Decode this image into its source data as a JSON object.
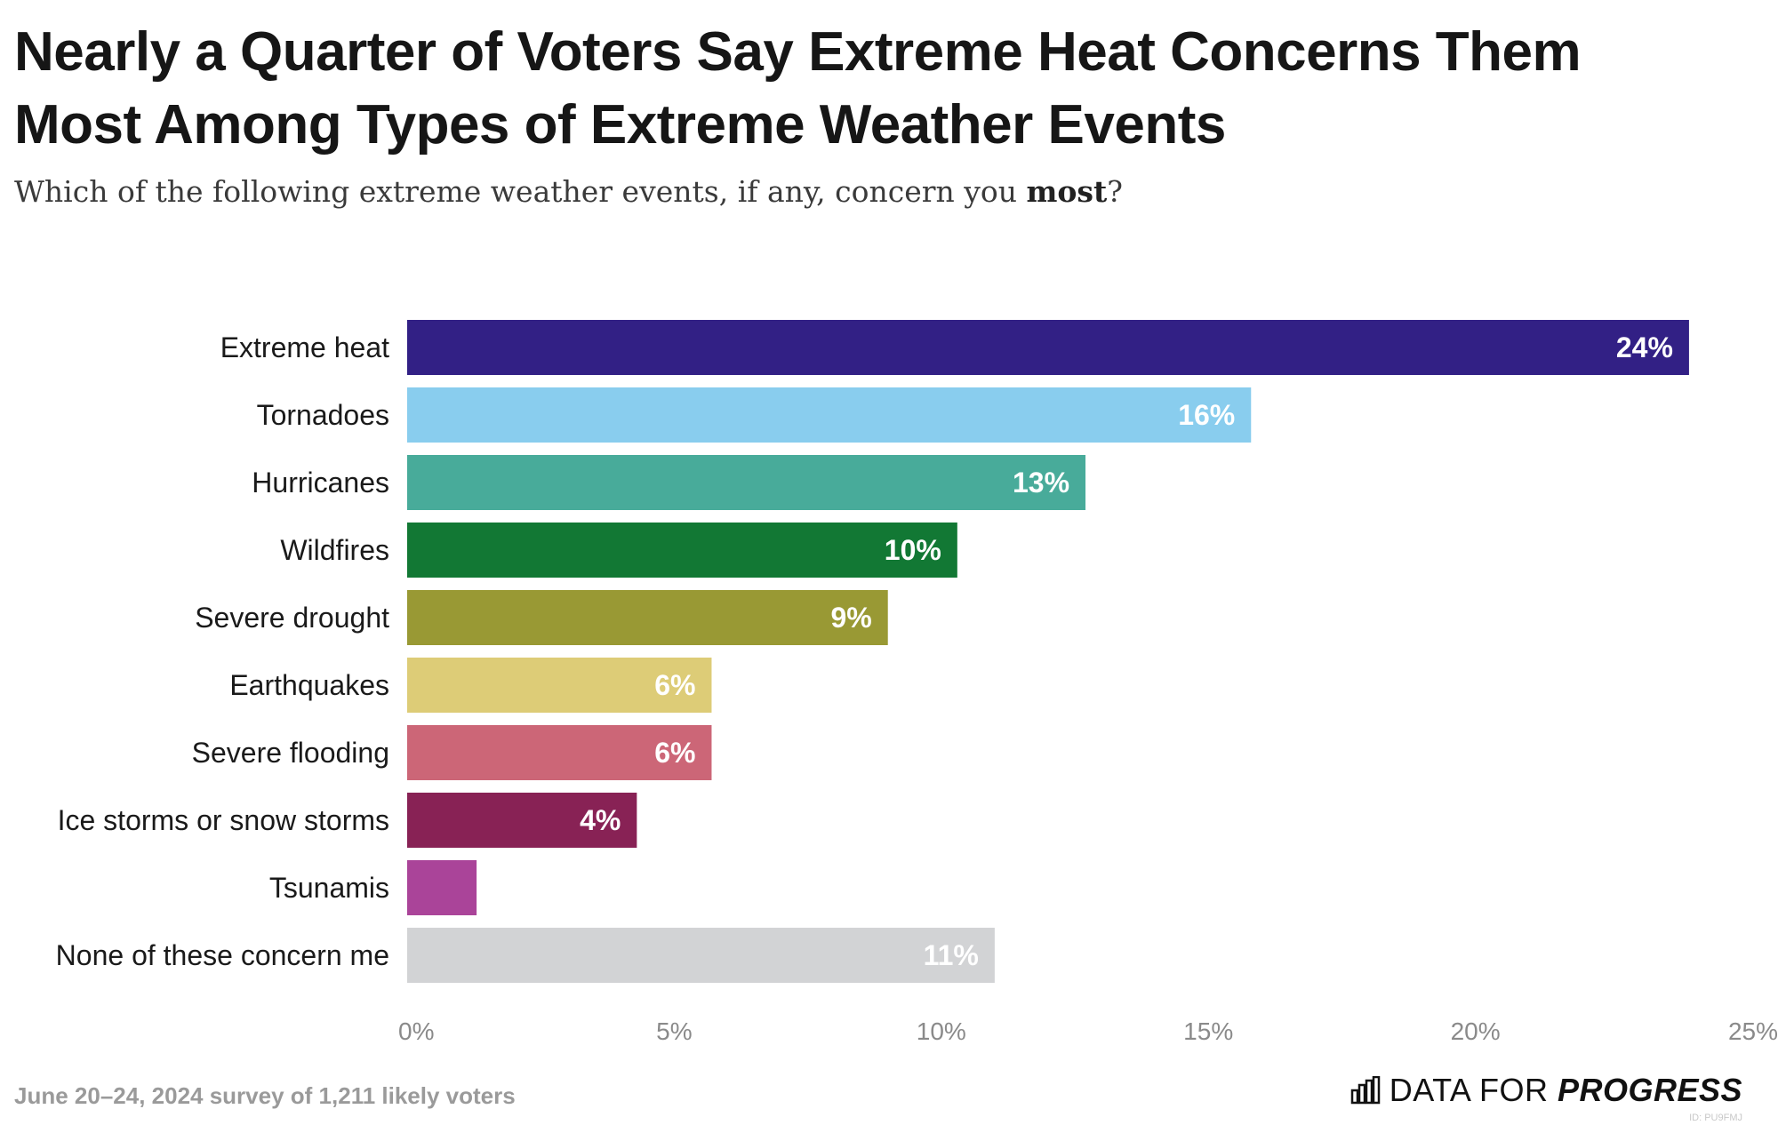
{
  "title_line1": "Nearly a Quarter of Voters Say Extreme Heat Concerns Them",
  "title_line2": "Most Among Types of Extreme Weather Events",
  "subtitle_pre": "Which of the following extreme weather events, if any, concern you ",
  "subtitle_bold": "most",
  "subtitle_post": "?",
  "footer": {
    "note": "June 20–24, 2024 survey of 1,211 likely voters",
    "logo_light": "DATA FOR ",
    "logo_bold": "PROGRESS",
    "id_tag": "ID: PU9FMJ"
  },
  "chart_data": {
    "type": "bar",
    "orientation": "horizontal",
    "categories": [
      "Extreme heat",
      "Tornadoes",
      "Hurricanes",
      "Wildfires",
      "Severe drought",
      "Earthquakes",
      "Severe flooding",
      "Ice storms or snow storms",
      "Tsunamis",
      "None of these concern me"
    ],
    "values": [
      24,
      15.8,
      12.7,
      10.3,
      9,
      5.7,
      5.7,
      4.3,
      1.3,
      11
    ],
    "labels": [
      "24%",
      "16%",
      "13%",
      "10%",
      "9%",
      "6%",
      "6%",
      "4%",
      "",
      "11%"
    ],
    "colors": [
      "#322085",
      "#89cdee",
      "#48ab9a",
      "#127834",
      "#999934",
      "#ddcc77",
      "#cc6677",
      "#882255",
      "#aa4499",
      "#d2d3d5"
    ],
    "label_colors": [
      "#ffffff",
      "#ffffff",
      "#ffffff",
      "#ffffff",
      "#ffffff",
      "#ffffff",
      "#ffffff",
      "#ffffff",
      "#ffffff",
      "#ffffff"
    ],
    "xlim": [
      0,
      25
    ],
    "xticks": [
      0,
      5,
      10,
      15,
      20,
      25
    ],
    "xtick_labels": [
      "0%",
      "5%",
      "10%",
      "15%",
      "20%",
      "25%"
    ],
    "grid": false,
    "legend": "none"
  }
}
